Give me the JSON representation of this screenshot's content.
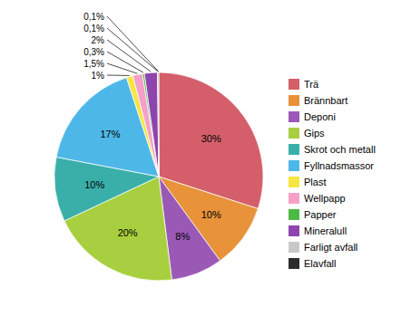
{
  "chart_data": {
    "type": "pie",
    "categories": [
      "Trä",
      "Brännbart",
      "Deponi",
      "Gips",
      "Skrot och metall",
      "Fyllnadsmassor",
      "Plast",
      "Wellpapp",
      "Papper",
      "Mineralull",
      "Farligt avfall",
      "Elavfall"
    ],
    "values": [
      30,
      10,
      8,
      20,
      10,
      17,
      1,
      1.5,
      0.3,
      2,
      0.1,
      0.1
    ],
    "value_labels": [
      "30%",
      "10%",
      "8%",
      "20%",
      "10%",
      "17%",
      "1%",
      "1,5%",
      "0,3%",
      "2%",
      "0,1%",
      "0,1%"
    ],
    "colors": [
      "#d45f6a",
      "#e8923a",
      "#9b59b6",
      "#a8cf3f",
      "#3aafa9",
      "#4db8e8",
      "#f5e642",
      "#f5a0c8",
      "#4cb944",
      "#8e44ad",
      "#c8c8c8",
      "#2c2c2c"
    ],
    "data_labels": true,
    "legend": "right"
  }
}
